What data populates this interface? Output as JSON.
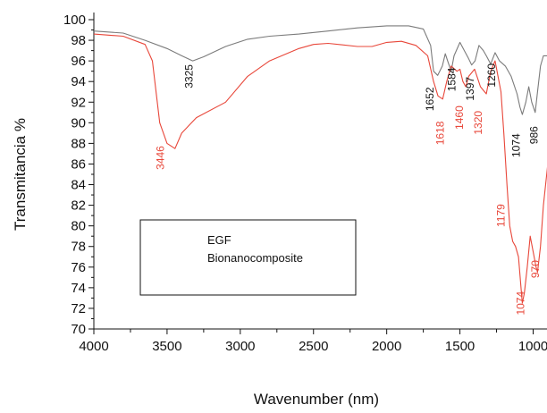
{
  "chart_data": {
    "type": "line",
    "xlabel": "Wavenumber (nm)",
    "ylabel": "Transmitancia %",
    "xlim": [
      4000,
      900
    ],
    "ylim": [
      70,
      100
    ],
    "x_ticks": [
      "4000",
      "3500",
      "3000",
      "2500",
      "2000",
      "1500",
      "1000"
    ],
    "y_ticks": [
      "70",
      "72",
      "74",
      "76",
      "78",
      "80",
      "82",
      "84",
      "86",
      "88",
      "90",
      "92",
      "94",
      "96",
      "98",
      "100"
    ],
    "legend": {
      "placement": "left-center",
      "entries": [
        "EGF",
        "Bionanocomposite"
      ]
    },
    "series": [
      {
        "name": "EGF",
        "color": "#7b7b7b",
        "x": [
          4000,
          3800,
          3650,
          3500,
          3400,
          3325,
          3250,
          3100,
          2950,
          2800,
          2600,
          2400,
          2200,
          2000,
          1850,
          1750,
          1700,
          1680,
          1652,
          1620,
          1600,
          1584,
          1560,
          1540,
          1500,
          1470,
          1440,
          1420,
          1397,
          1370,
          1340,
          1320,
          1290,
          1260,
          1230,
          1190,
          1150,
          1110,
          1090,
          1074,
          1050,
          1030,
          1010,
          986,
          970,
          950,
          930,
          900
        ],
        "y": [
          98.9,
          98.7,
          98.0,
          97.2,
          96.5,
          96.0,
          96.4,
          97.4,
          98.1,
          98.4,
          98.6,
          98.9,
          99.2,
          99.4,
          99.4,
          99.1,
          97.5,
          95.0,
          94.6,
          95.5,
          96.7,
          96.0,
          95.0,
          96.5,
          97.8,
          97.0,
          96.2,
          95.6,
          96.0,
          97.5,
          97.0,
          96.5,
          95.7,
          96.8,
          96.0,
          95.5,
          94.5,
          92.8,
          91.5,
          90.8,
          92.0,
          93.5,
          92.0,
          91.0,
          93.0,
          95.5,
          96.5,
          96.5
        ]
      },
      {
        "name": "Bionanocomposite",
        "color": "#e8473a",
        "x": [
          4000,
          3800,
          3650,
          3600,
          3550,
          3500,
          3446,
          3400,
          3300,
          3100,
          2950,
          2800,
          2600,
          2500,
          2400,
          2200,
          2100,
          2000,
          1900,
          1800,
          1720,
          1680,
          1650,
          1618,
          1590,
          1560,
          1520,
          1500,
          1480,
          1460,
          1440,
          1400,
          1360,
          1320,
          1290,
          1260,
          1220,
          1200,
          1179,
          1160,
          1140,
          1120,
          1100,
          1080,
          1074,
          1060,
          1040,
          1020,
          1000,
          980,
          970,
          950,
          930,
          900
        ],
        "y": [
          98.6,
          98.4,
          97.6,
          96.0,
          90.0,
          88.0,
          87.5,
          89.0,
          90.5,
          92.0,
          94.5,
          96.0,
          97.2,
          97.6,
          97.7,
          97.4,
          97.4,
          97.8,
          97.9,
          97.5,
          96.5,
          94.0,
          92.6,
          92.3,
          94.0,
          95.5,
          95.0,
          95.2,
          94.0,
          93.5,
          94.5,
          95.2,
          93.5,
          92.8,
          95.0,
          96.0,
          93.0,
          89.0,
          84.0,
          80.0,
          78.5,
          78.0,
          77.0,
          73.5,
          72.5,
          73.5,
          76.0,
          79.0,
          77.5,
          76.0,
          75.5,
          78.0,
          82.0,
          86.0
        ]
      }
    ],
    "annotations": [
      {
        "label": "3325",
        "x": 3325,
        "y": 94.5,
        "series": "EGF",
        "color": "#111111"
      },
      {
        "label": "1652",
        "x": 1680,
        "y": 92.3,
        "series": "EGF",
        "color": "#111111"
      },
      {
        "label": "1584",
        "x": 1530,
        "y": 94.2,
        "series": "EGF",
        "color": "#111111"
      },
      {
        "label": "1397",
        "x": 1405,
        "y": 93.3,
        "series": "EGF",
        "color": "#111111"
      },
      {
        "label": "1260",
        "x": 1260,
        "y": 94.6,
        "series": "EGF",
        "color": "#111111"
      },
      {
        "label": "1074",
        "x": 1092,
        "y": 87.8,
        "series": "EGF",
        "color": "#111111"
      },
      {
        "label": "986",
        "x": 970,
        "y": 88.8,
        "series": "EGF",
        "color": "#111111"
      },
      {
        "label": "1618",
        "x": 1610,
        "y": 89.0,
        "series": "Bionanocomposite",
        "color": "#e8473a"
      },
      {
        "label": "1460",
        "x": 1480,
        "y": 90.5,
        "series": "Bionanocomposite",
        "color": "#e8473a"
      },
      {
        "label": "1320",
        "x": 1350,
        "y": 90.0,
        "series": "Bionanocomposite",
        "color": "#e8473a"
      },
      {
        "label": "3446",
        "x": 3520,
        "y": 86.6,
        "series": "Bionanocomposite",
        "color": "#e8473a"
      },
      {
        "label": "1179",
        "x": 1195,
        "y": 81.0,
        "series": "Bionanocomposite",
        "color": "#e8473a"
      },
      {
        "label": "1074",
        "x": 1060,
        "y": 72.5,
        "series": "Bionanocomposite",
        "color": "#e8473a"
      },
      {
        "label": "970",
        "x": 960,
        "y": 75.8,
        "series": "Bionanocomposite",
        "color": "#e8473a"
      }
    ],
    "grid": false
  }
}
